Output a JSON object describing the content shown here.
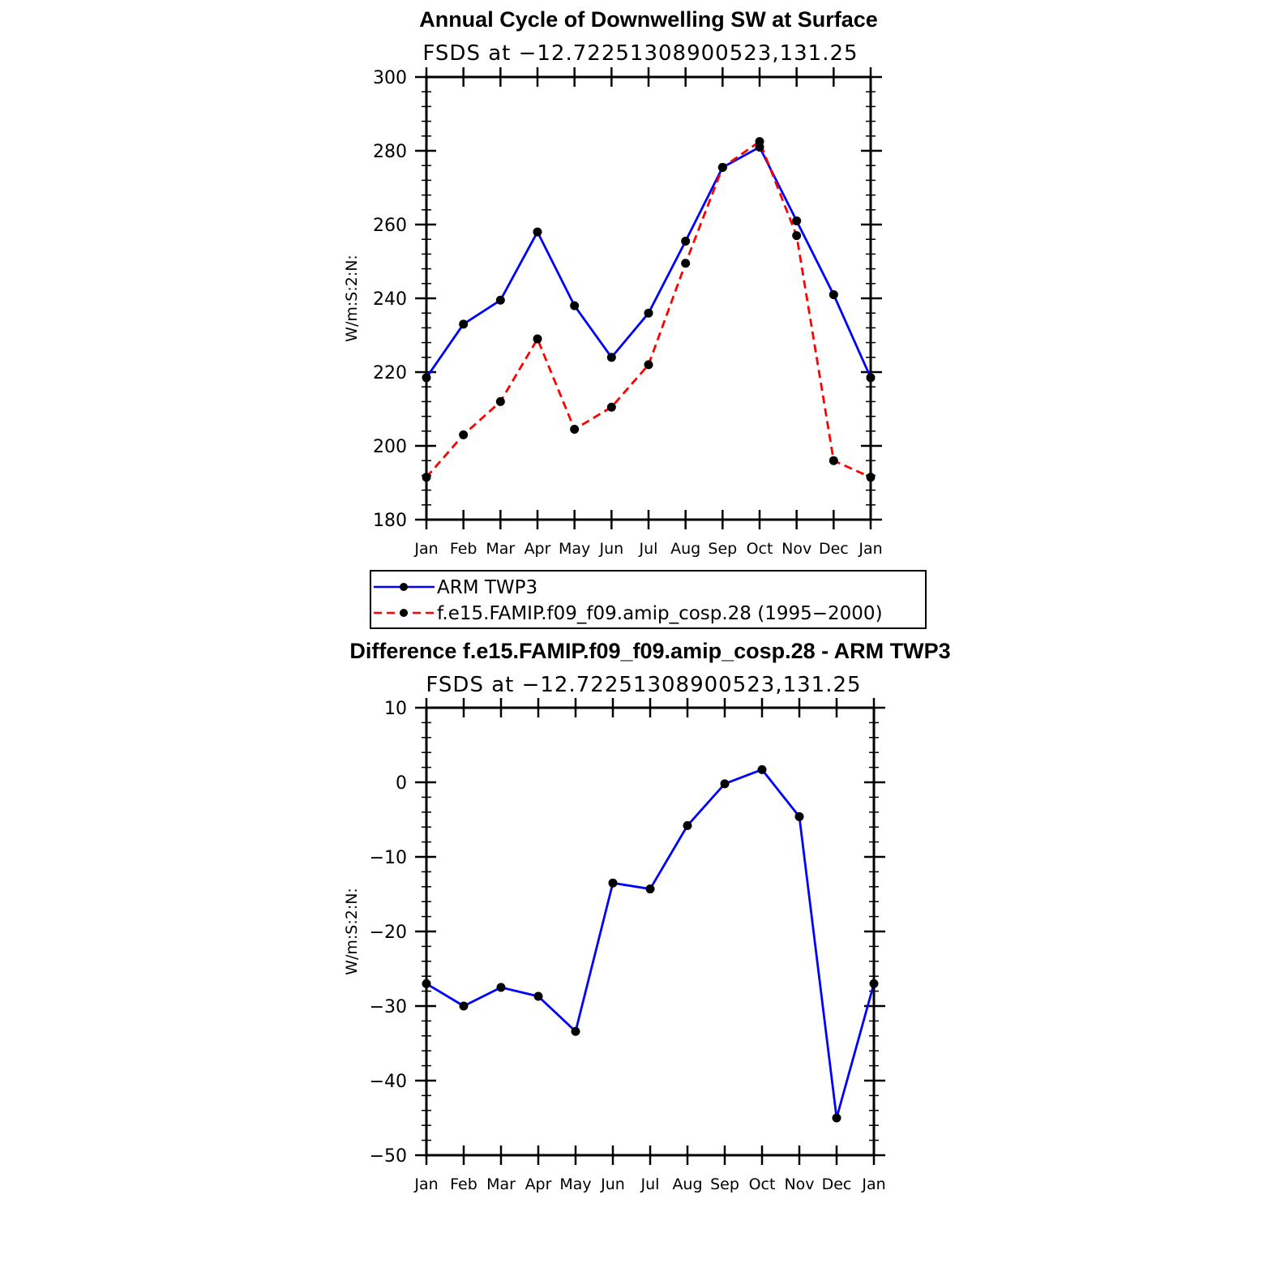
{
  "chart_data": [
    {
      "type": "line",
      "title": "Annual Cycle of Downwelling SW at Surface",
      "subtitle": "FSDS at −12.72251308900523,131.25",
      "xlabel": "",
      "ylabel": "W/m:S:2:N:",
      "ylim": [
        180,
        300
      ],
      "yticks": [
        "180",
        "200",
        "220",
        "240",
        "260",
        "280",
        "300"
      ],
      "categories": [
        "Jan",
        "Feb",
        "Mar",
        "Apr",
        "May",
        "Jun",
        "Jul",
        "Aug",
        "Sep",
        "Oct",
        "Nov",
        "Dec",
        "Jan"
      ],
      "legend_placement": "below",
      "series": [
        {
          "name": "ARM TWP3",
          "color": "#0000ff",
          "dash": "solid",
          "values": [
            218.5,
            233,
            239.5,
            258,
            238,
            224,
            236,
            255.5,
            275.5,
            281,
            261,
            241,
            218.5
          ]
        },
        {
          "name": "f.e15.FAMIP.f09_f09.amip_cosp.28 (1995−2000)",
          "color": "#ff0000",
          "dash": "dashed",
          "values": [
            191.5,
            203,
            212,
            229,
            204.5,
            210.5,
            222,
            249.5,
            275.5,
            282.5,
            257,
            196,
            191.5
          ]
        }
      ]
    },
    {
      "type": "line",
      "title": "Difference f.e15.FAMIP.f09_f09.amip_cosp.28 - ARM TWP3",
      "subtitle": "FSDS at −12.72251308900523,131.25",
      "xlabel": "",
      "ylabel": "W/m:S:2:N:",
      "ylim": [
        -50,
        10
      ],
      "yticks": [
        "−50",
        "−40",
        "−30",
        "−20",
        "−10",
        "0",
        "10"
      ],
      "categories": [
        "Jan",
        "Feb",
        "Mar",
        "Apr",
        "May",
        "Jun",
        "Jul",
        "Aug",
        "Sep",
        "Oct",
        "Nov",
        "Dec",
        "Jan"
      ],
      "series": [
        {
          "color": "#0000ff",
          "dash": "solid",
          "values": [
            -27,
            -30,
            -27.5,
            -28.7,
            -33.4,
            -13.5,
            -14.3,
            -5.8,
            -0.2,
            1.7,
            -4.6,
            -45,
            -27
          ]
        }
      ]
    }
  ]
}
